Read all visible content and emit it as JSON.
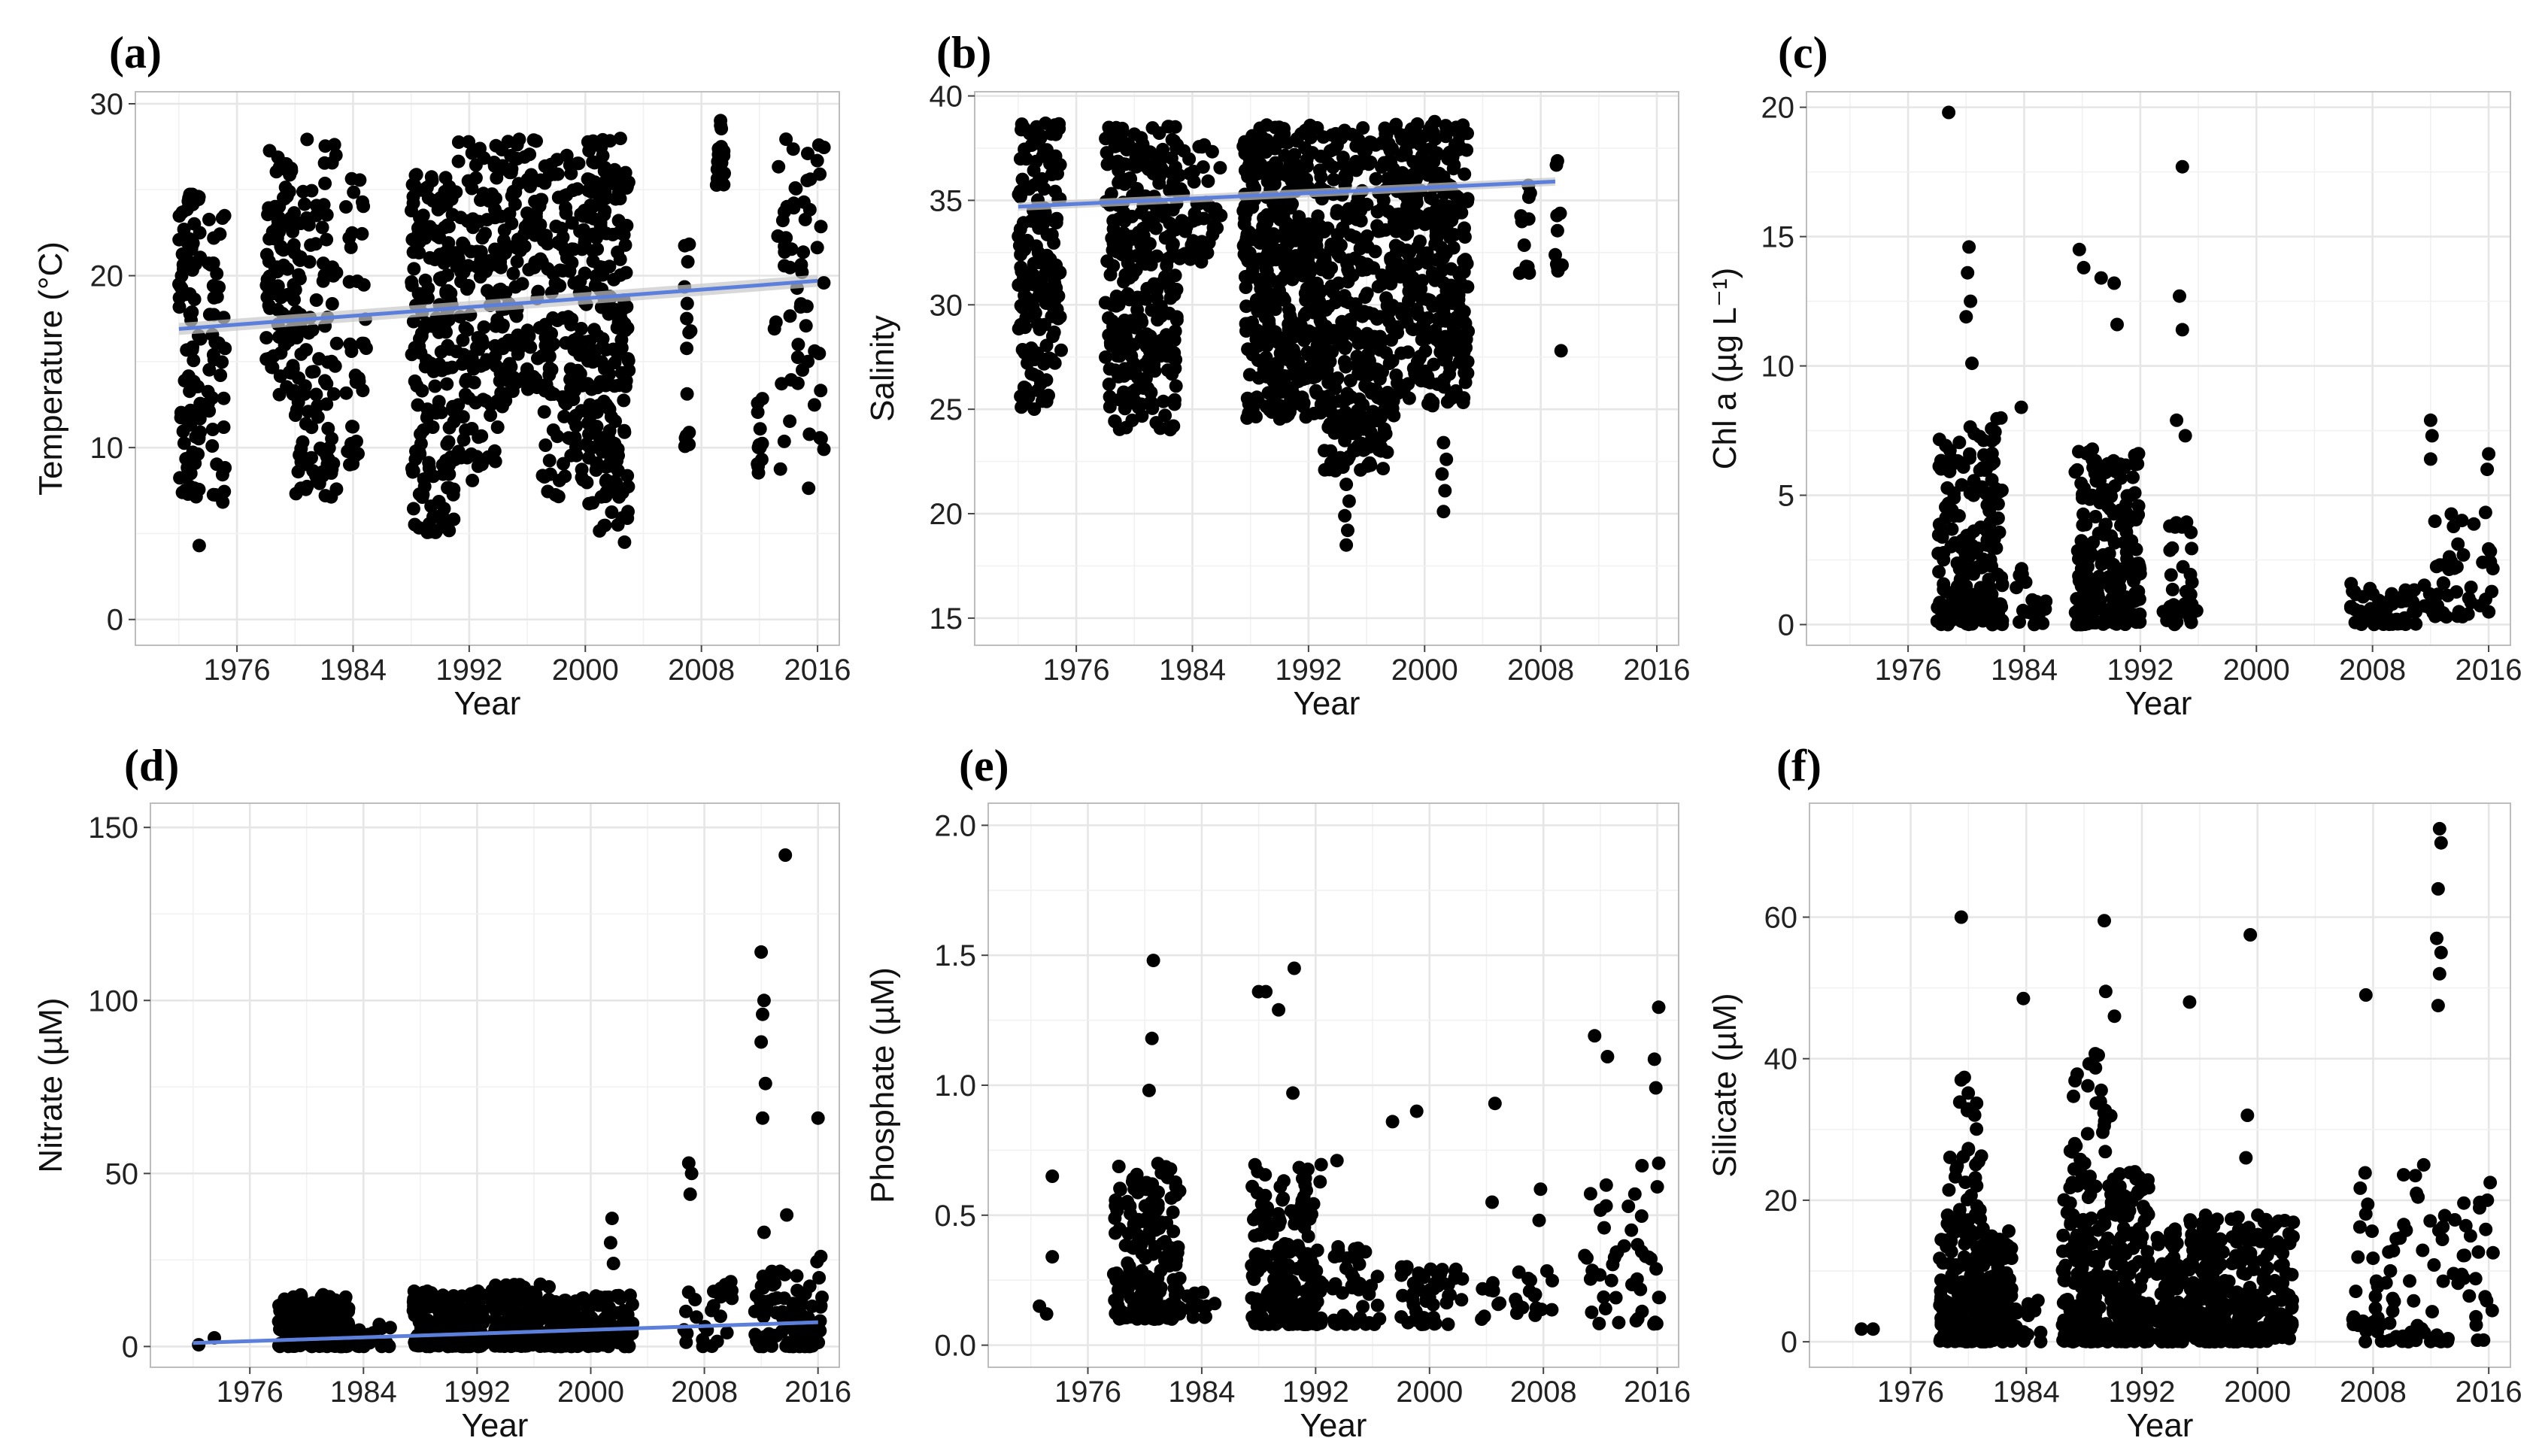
{
  "chart_data": [
    {
      "type": "scatter",
      "panel_label": "(a)",
      "xlabel": "Year",
      "ylabel": "Temperature (°C)",
      "xlim": [
        1969,
        2017.5
      ],
      "ylim": [
        -1.5,
        30.7
      ],
      "xticks": [
        1976,
        1984,
        1992,
        2000,
        2008,
        2016
      ],
      "xtick_labels": [
        "1976",
        "1984",
        "1992",
        "2000",
        "2008",
        "2016"
      ],
      "yticks": [
        0,
        10,
        20,
        30
      ],
      "ytick_labels": [
        "0",
        "10",
        "20",
        "30"
      ],
      "trend": {
        "x": [
          1972,
          2016
        ],
        "y": [
          16.9,
          19.7
        ],
        "band": 0.35
      },
      "clusters": [
        {
          "x": [
            1972,
            1973.5
          ],
          "y": [
            6,
            25
          ],
          "n": 90
        },
        {
          "x": [
            1974,
            1975.2
          ],
          "y": [
            6,
            23.5
          ],
          "n": 40
        },
        {
          "x": [
            1978,
            1980
          ],
          "y": [
            13,
            27.5
          ],
          "n": 90
        },
        {
          "x": [
            1980,
            1983
          ],
          "y": [
            7,
            28
          ],
          "n": 110
        },
        {
          "x": [
            1983.5,
            1985
          ],
          "y": [
            9,
            26
          ],
          "n": 35
        },
        {
          "x": [
            1988,
            1991
          ],
          "y": [
            5,
            26
          ],
          "n": 180
        },
        {
          "x": [
            1991,
            1994
          ],
          "y": [
            8,
            28
          ],
          "n": 130
        },
        {
          "x": [
            1994,
            1997
          ],
          "y": [
            12,
            28
          ],
          "n": 120
        },
        {
          "x": [
            1997,
            2000
          ],
          "y": [
            7,
            27
          ],
          "n": 130
        },
        {
          "x": [
            2000,
            2003
          ],
          "y": [
            5,
            28
          ],
          "n": 200
        },
        {
          "x": [
            2006.8,
            2007.3
          ],
          "y": [
            10,
            22
          ],
          "n": 15
        },
        {
          "x": [
            2009,
            2009.6
          ],
          "y": [
            25,
            29.5
          ],
          "n": 20
        },
        {
          "x": [
            2011.8,
            2012.3
          ],
          "y": [
            8,
            13.5
          ],
          "n": 12
        },
        {
          "x": [
            2013,
            2016.5
          ],
          "y": [
            7.5,
            28
          ],
          "n": 60
        }
      ],
      "points": [
        [
          1973.4,
          4.3
        ],
        [
          2002.7,
          4.5
        ],
        [
          1989.3,
          5.1
        ]
      ]
    },
    {
      "type": "scatter",
      "panel_label": "(b)",
      "xlabel": "Year",
      "ylabel": "Salinity",
      "xlim": [
        1969,
        2017.5
      ],
      "ylim": [
        13.7,
        40.2
      ],
      "xticks": [
        1976,
        1984,
        1992,
        2000,
        2008,
        2016
      ],
      "xtick_labels": [
        "1976",
        "1984",
        "1992",
        "2000",
        "2008",
        "2016"
      ],
      "yticks": [
        15,
        20,
        25,
        30,
        35,
        40
      ],
      "ytick_labels": [
        "15",
        "20",
        "25",
        "30",
        "35",
        "40"
      ],
      "trend": {
        "x": [
          1972,
          2009
        ],
        "y": [
          34.7,
          35.9
        ],
        "band": 0.2
      },
      "clusters": [
        {
          "x": [
            1972,
            1975
          ],
          "y": [
            25,
            38.7
          ],
          "n": 170
        },
        {
          "x": [
            1978,
            1983
          ],
          "y": [
            24,
            38.6
          ],
          "n": 300
        },
        {
          "x": [
            1983,
            1986
          ],
          "y": [
            32,
            38
          ],
          "n": 50
        },
        {
          "x": [
            1987.5,
            1993
          ],
          "y": [
            24.5,
            38.7
          ],
          "n": 420
        },
        {
          "x": [
            1993,
            1998
          ],
          "y": [
            22,
            38.5
          ],
          "n": 320
        },
        {
          "x": [
            1998,
            2003
          ],
          "y": [
            25,
            38.8
          ],
          "n": 320
        },
        {
          "x": [
            2006.5,
            2007.3
          ],
          "y": [
            31.5,
            36
          ],
          "n": 12
        },
        {
          "x": [
            2009,
            2009.5
          ],
          "y": [
            31.5,
            37
          ],
          "n": 10
        }
      ],
      "points": [
        [
          1994.6,
          18.5
        ],
        [
          1994.7,
          19.2
        ],
        [
          1994.5,
          19.9
        ],
        [
          1994.8,
          20.6
        ],
        [
          1994.6,
          21.4
        ],
        [
          1994.7,
          22.6
        ],
        [
          1994.5,
          23.5
        ],
        [
          2001.3,
          20.1
        ],
        [
          2001.4,
          21.1
        ],
        [
          2001.2,
          21.9
        ],
        [
          2001.5,
          22.6
        ],
        [
          2001.3,
          23.4
        ],
        [
          2009.4,
          27.8
        ]
      ]
    },
    {
      "type": "scatter",
      "panel_label": "(c)",
      "xlabel": "Year",
      "ylabel": "Chl a  (µg L⁻¹)",
      "xlim": [
        1969,
        2017.5
      ],
      "ylim": [
        -0.8,
        20.6
      ],
      "xticks": [
        1976,
        1984,
        1992,
        2000,
        2008,
        2016
      ],
      "xtick_labels": [
        "1976",
        "1984",
        "1992",
        "2000",
        "2008",
        "2016"
      ],
      "yticks": [
        0,
        5,
        10,
        15,
        20
      ],
      "ytick_labels": [
        "0",
        "5",
        "10",
        "15",
        "20"
      ],
      "clusters": [
        {
          "x": [
            1978,
            1982.5
          ],
          "y": [
            0,
            8
          ],
          "n": 220
        },
        {
          "x": [
            1983.3,
            1985.5
          ],
          "y": [
            0,
            2.5
          ],
          "n": 18
        },
        {
          "x": [
            1987.5,
            1992
          ],
          "y": [
            0,
            7
          ],
          "n": 230
        },
        {
          "x": [
            1993.5,
            1996
          ],
          "y": [
            0,
            4
          ],
          "n": 40
        },
        {
          "x": [
            2006.5,
            2011
          ],
          "y": [
            0,
            1.6
          ],
          "n": 60
        },
        {
          "x": [
            2011.5,
            2016.3
          ],
          "y": [
            0.3,
            4.5
          ],
          "n": 50
        }
      ],
      "points": [
        [
          1978.8,
          19.8
        ],
        [
          1980.2,
          14.6
        ],
        [
          1980.1,
          13.6
        ],
        [
          1980.3,
          12.5
        ],
        [
          1980.0,
          11.9
        ],
        [
          1980.4,
          10.1
        ],
        [
          1983.8,
          8.4
        ],
        [
          1987.8,
          14.5
        ],
        [
          1988.1,
          13.8
        ],
        [
          1989.3,
          13.4
        ],
        [
          1990.2,
          13.2
        ],
        [
          1990.4,
          11.6
        ],
        [
          1994.9,
          17.7
        ],
        [
          1994.7,
          12.7
        ],
        [
          1994.9,
          11.4
        ],
        [
          1994.5,
          7.9
        ],
        [
          1995.1,
          7.3
        ],
        [
          2012.0,
          7.9
        ],
        [
          2012.1,
          7.3
        ],
        [
          2012.0,
          6.4
        ],
        [
          2016.0,
          6.6
        ],
        [
          2015.9,
          6.0
        ]
      ]
    },
    {
      "type": "scatter",
      "panel_label": "(d)",
      "xlabel": "Year",
      "ylabel": "Nitrate (µM)",
      "xlim": [
        1969,
        2017.5
      ],
      "ylim": [
        -6,
        157
      ],
      "xticks": [
        1976,
        1984,
        1992,
        2000,
        2008,
        2016
      ],
      "xtick_labels": [
        "1976",
        "1984",
        "1992",
        "2000",
        "2008",
        "2016"
      ],
      "yticks": [
        0,
        50,
        100,
        150
      ],
      "ytick_labels": [
        "0",
        "50",
        "100",
        "150"
      ],
      "trend": {
        "x": [
          1972,
          2016
        ],
        "y": [
          1,
          7
        ],
        "band": 0.5
      },
      "clusters": [
        {
          "x": [
            1978,
            1983
          ],
          "y": [
            0,
            15
          ],
          "n": 220
        },
        {
          "x": [
            1983,
            1986
          ],
          "y": [
            0,
            7
          ],
          "n": 20
        },
        {
          "x": [
            1987.5,
            1992.5
          ],
          "y": [
            0,
            16
          ],
          "n": 220
        },
        {
          "x": [
            1993,
            1997.5
          ],
          "y": [
            0,
            18
          ],
          "n": 170
        },
        {
          "x": [
            1997.5,
            2003
          ],
          "y": [
            0,
            15
          ],
          "n": 170
        },
        {
          "x": [
            2006.5,
            2010
          ],
          "y": [
            0,
            20
          ],
          "n": 25
        },
        {
          "x": [
            2011.5,
            2016.3
          ],
          "y": [
            0,
            25
          ],
          "n": 90
        }
      ],
      "points": [
        [
          1972.4,
          0.5
        ],
        [
          1973.5,
          2.5
        ],
        [
          2001.5,
          37
        ],
        [
          2001.4,
          30
        ],
        [
          2001.6,
          24
        ],
        [
          2006.9,
          53
        ],
        [
          2007.1,
          50
        ],
        [
          2007.0,
          44
        ],
        [
          2012.0,
          114
        ],
        [
          2012.2,
          100
        ],
        [
          2012.1,
          96
        ],
        [
          2012.0,
          88
        ],
        [
          2012.3,
          76
        ],
        [
          2012.1,
          66
        ],
        [
          2012.2,
          33
        ],
        [
          2013.7,
          142
        ],
        [
          2013.8,
          38
        ],
        [
          2016.0,
          66
        ],
        [
          2016.2,
          26
        ]
      ]
    },
    {
      "type": "scatter",
      "panel_label": "(e)",
      "xlabel": "Year",
      "ylabel": "Phosphate (µM)",
      "xlim": [
        1969,
        2017.5
      ],
      "ylim": [
        -0.085,
        2.085
      ],
      "xticks": [
        1976,
        1984,
        1992,
        2000,
        2008,
        2016
      ],
      "xtick_labels": [
        "1976",
        "1984",
        "1992",
        "2000",
        "2008",
        "2016"
      ],
      "yticks": [
        0.0,
        0.5,
        1.0,
        1.5,
        2.0
      ],
      "ytick_labels": [
        "0.0",
        "0.5",
        "1.0",
        "1.5",
        "2.0"
      ],
      "clusters": [
        {
          "x": [
            1977.8,
            1982.5
          ],
          "y": [
            0.1,
            0.7
          ],
          "n": 190
        },
        {
          "x": [
            1982.5,
            1985
          ],
          "y": [
            0.1,
            0.3
          ],
          "n": 12
        },
        {
          "x": [
            1987.5,
            1992.5
          ],
          "y": [
            0.08,
            0.7
          ],
          "n": 220
        },
        {
          "x": [
            1993,
            1996.5
          ],
          "y": [
            0.08,
            0.4
          ],
          "n": 40
        },
        {
          "x": [
            1998,
            2002.5
          ],
          "y": [
            0.08,
            0.32
          ],
          "n": 50
        },
        {
          "x": [
            2003.5,
            2005
          ],
          "y": [
            0.1,
            0.25
          ],
          "n": 8
        },
        {
          "x": [
            2006,
            2009
          ],
          "y": [
            0.1,
            0.3
          ],
          "n": 16
        },
        {
          "x": [
            2010.5,
            2016.3
          ],
          "y": [
            0.08,
            0.7
          ],
          "n": 45
        }
      ],
      "points": [
        [
          1972.6,
          0.15
        ],
        [
          1973.1,
          0.12
        ],
        [
          1973.5,
          0.34
        ],
        [
          1973.5,
          0.65
        ],
        [
          1980.6,
          1.48
        ],
        [
          1980.5,
          1.18
        ],
        [
          1980.3,
          0.98
        ],
        [
          1988.0,
          1.36
        ],
        [
          1988.5,
          1.36
        ],
        [
          1989.4,
          1.29
        ],
        [
          1990.5,
          1.45
        ],
        [
          1990.4,
          0.97
        ],
        [
          1993.5,
          0.71
        ],
        [
          1997.4,
          0.86
        ],
        [
          1999.1,
          0.9
        ],
        [
          2004.6,
          0.93
        ],
        [
          2004.4,
          0.55
        ],
        [
          2007.8,
          0.6
        ],
        [
          2007.7,
          0.48
        ],
        [
          2011.6,
          1.19
        ],
        [
          2012.5,
          1.11
        ],
        [
          2016.1,
          1.3
        ],
        [
          2015.8,
          1.1
        ],
        [
          2015.9,
          0.99
        ],
        [
          2016.1,
          0.7
        ]
      ]
    },
    {
      "type": "scatter",
      "panel_label": "(f)",
      "xlabel": "Year",
      "ylabel": "Silicate (µM)",
      "xlim": [
        1969,
        2017.5
      ],
      "ylim": [
        -3.6,
        76.1
      ],
      "xticks": [
        1976,
        1984,
        1992,
        2000,
        2008,
        2016
      ],
      "xtick_labels": [
        "1976",
        "1984",
        "1992",
        "2000",
        "2008",
        "2016"
      ],
      "yticks": [
        0,
        20,
        40,
        60
      ],
      "ytick_labels": [
        "0",
        "20",
        "40",
        "60"
      ],
      "clusters": [
        {
          "x": [
            1978,
            1983
          ],
          "y": [
            0,
            16
          ],
          "n": 280
        },
        {
          "x": [
            1978.5,
            1981
          ],
          "y": [
            16,
            38
          ],
          "n": 40
        },
        {
          "x": [
            1983,
            1985
          ],
          "y": [
            0,
            6
          ],
          "n": 15
        },
        {
          "x": [
            1986.5,
            1992.5
          ],
          "y": [
            0,
            25
          ],
          "n": 340
        },
        {
          "x": [
            1987,
            1990
          ],
          "y": [
            25,
            41
          ],
          "n": 25
        },
        {
          "x": [
            1993,
            1997.5
          ],
          "y": [
            0,
            18
          ],
          "n": 220
        },
        {
          "x": [
            1997.5,
            2002.5
          ],
          "y": [
            0,
            18
          ],
          "n": 200
        },
        {
          "x": [
            2006.5,
            2011.5
          ],
          "y": [
            0,
            25
          ],
          "n": 60
        },
        {
          "x": [
            2011.5,
            2016.3
          ],
          "y": [
            0,
            20
          ],
          "n": 40
        }
      ],
      "points": [
        [
          1972.6,
          1.8
        ],
        [
          1973.4,
          1.8
        ],
        [
          1979.5,
          60
        ],
        [
          1983.8,
          48.5
        ],
        [
          1989.4,
          59.5
        ],
        [
          1989.5,
          49.5
        ],
        [
          1990.1,
          46
        ],
        [
          1995.3,
          48
        ],
        [
          1999.5,
          57.5
        ],
        [
          1999.3,
          32
        ],
        [
          1999.2,
          26
        ],
        [
          2007.5,
          49
        ],
        [
          2011.5,
          25
        ],
        [
          2012.6,
          72.5
        ],
        [
          2012.7,
          70.5
        ],
        [
          2012.5,
          64
        ],
        [
          2012.4,
          57
        ],
        [
          2012.7,
          55
        ],
        [
          2012.6,
          52
        ],
        [
          2012.5,
          47.5
        ],
        [
          2016.1,
          22.5
        ],
        [
          2015.9,
          20
        ]
      ]
    }
  ]
}
